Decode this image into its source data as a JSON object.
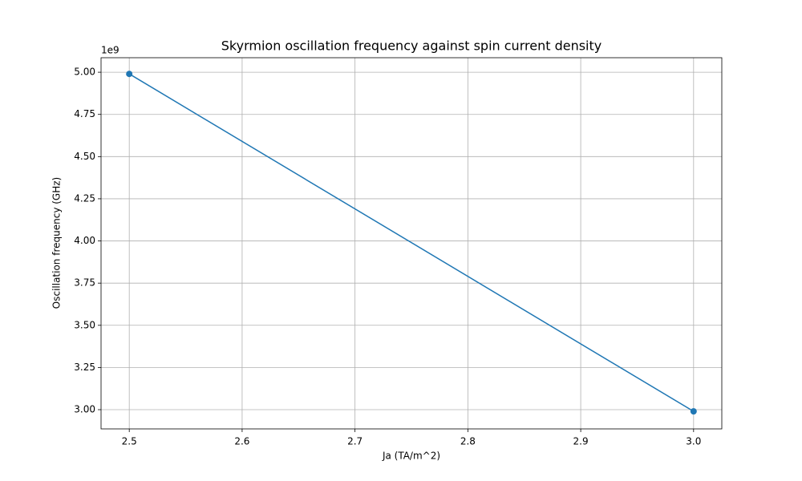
{
  "chart_data": {
    "type": "line",
    "title": "Skyrmion oscillation frequency against spin current density",
    "x_label": "Ja (TA/m^2)",
    "y_label": "Oscillation frequency (GHz)",
    "y_offset_label": "1e9",
    "x": [
      2.5,
      3.0
    ],
    "series": [
      {
        "color": "#1f77b4",
        "values": [
          4990000000,
          2990000000
        ]
      }
    ],
    "xlim": [
      2.475,
      3.025
    ],
    "ylim": [
      2886000000,
      5086000000
    ],
    "xticks": [
      2.5,
      2.6,
      2.7,
      2.8,
      2.9,
      {
        "value": 3,
        "label": "3.0"
      }
    ],
    "yticks": [
      {
        "value": 3000000000,
        "label": "3.00"
      },
      {
        "value": 3250000000,
        "label": "3.25"
      },
      {
        "value": 3500000000,
        "label": "3.50"
      },
      {
        "value": 3750000000,
        "label": "3.75"
      },
      {
        "value": 4000000000,
        "label": "4.00"
      },
      {
        "value": 4250000000,
        "label": "4.25"
      },
      {
        "value": 4500000000,
        "label": "4.50"
      },
      {
        "value": 4750000000,
        "label": "4.75"
      },
      {
        "value": 5000000000,
        "label": "5.00"
      }
    ],
    "grid": true,
    "markers": true
  }
}
